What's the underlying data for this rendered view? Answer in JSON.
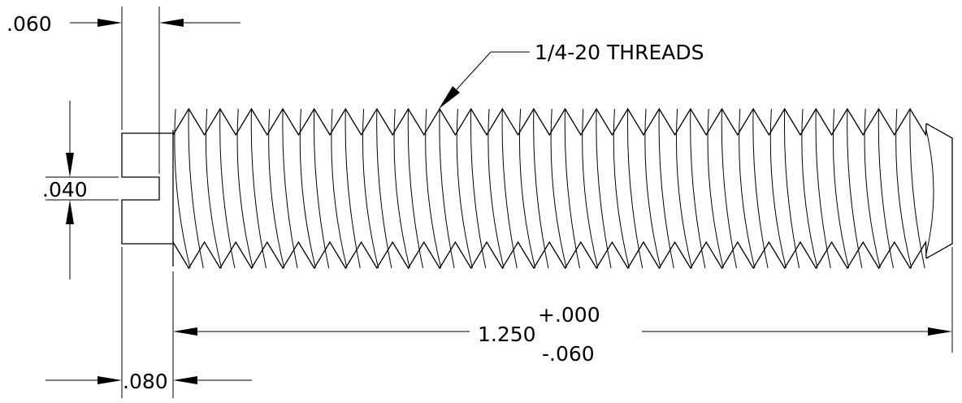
{
  "dimensions": {
    "head_width": ".060",
    "slot_width": ".040",
    "slot_depth": ".080",
    "length_nominal": "1.250",
    "length_tol_plus": "+.000",
    "length_tol_minus": "-.060"
  },
  "callout": {
    "thread_note": "1/4-20 THREADS"
  }
}
